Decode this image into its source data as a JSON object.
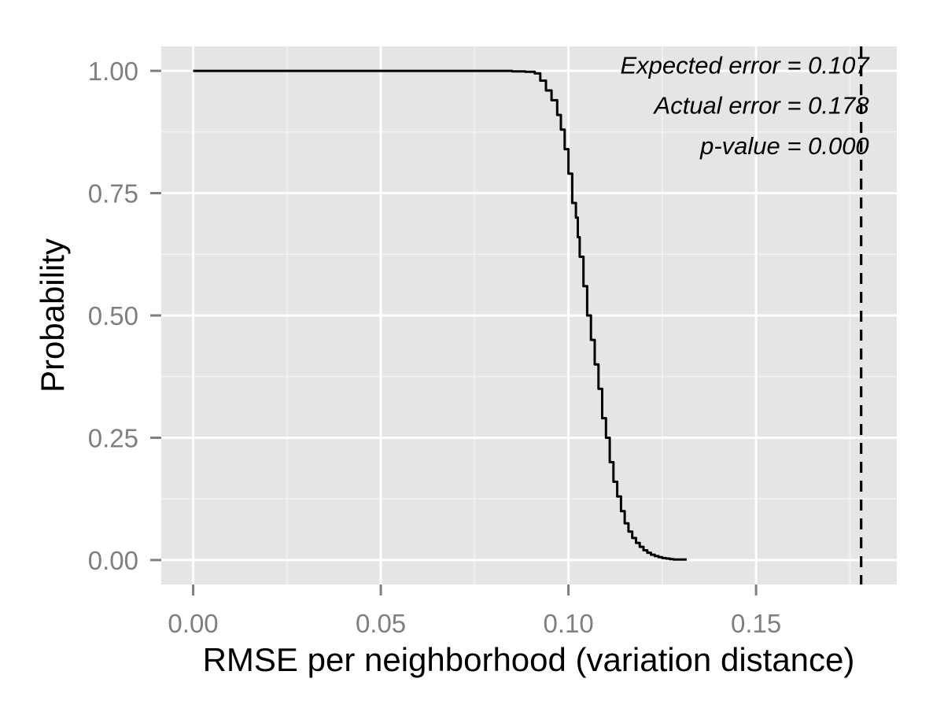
{
  "chart_data": {
    "type": "line",
    "title": "",
    "xlabel": "RMSE per neighborhood (variation distance)",
    "ylabel": "Probability",
    "xlim": [
      -0.0085,
      0.1875
    ],
    "ylim": [
      -0.05,
      1.05
    ],
    "x_ticks": [
      0.0,
      0.05,
      0.1,
      0.15
    ],
    "x_tick_labels": [
      "0.00",
      "0.05",
      "0.10",
      "0.15"
    ],
    "y_ticks": [
      0.0,
      0.25,
      0.5,
      0.75,
      1.0
    ],
    "y_tick_labels": [
      "0.00",
      "0.25",
      "0.50",
      "0.75",
      "1.00"
    ],
    "grid": true,
    "background": "#e5e5e5",
    "grid_color": "#ffffff",
    "line_color": "#000000",
    "tick_label_color": "#7f7f7f",
    "series": [
      {
        "style": "step",
        "x": [
          0.0,
          0.085,
          0.0885,
          0.091,
          0.0925,
          0.094,
          0.0955,
          0.097,
          0.098,
          0.099,
          0.1,
          0.101,
          0.102,
          0.1025,
          0.103,
          0.104,
          0.105,
          0.106,
          0.107,
          0.108,
          0.109,
          0.11,
          0.111,
          0.112,
          0.113,
          0.114,
          0.115,
          0.116,
          0.117,
          0.118,
          0.119,
          0.12,
          0.121,
          0.122,
          0.123,
          0.124,
          0.125,
          0.126,
          0.127,
          0.128,
          0.1315
        ],
        "y": [
          1.0,
          0.999,
          0.998,
          0.995,
          0.98,
          0.96,
          0.94,
          0.91,
          0.88,
          0.84,
          0.79,
          0.73,
          0.7,
          0.66,
          0.62,
          0.56,
          0.5,
          0.45,
          0.4,
          0.35,
          0.29,
          0.25,
          0.2,
          0.16,
          0.13,
          0.1,
          0.075,
          0.058,
          0.045,
          0.035,
          0.027,
          0.02,
          0.015,
          0.011,
          0.008,
          0.006,
          0.004,
          0.003,
          0.002,
          0.001,
          0.001
        ]
      }
    ],
    "vline": {
      "x": 0.178,
      "style": "dashed"
    },
    "annotations": [
      {
        "text": "Expected error = 0.107",
        "x": 0.178,
        "y": 1.0125,
        "anchor": "end"
      },
      {
        "text": "Actual error = 0.178",
        "x": 0.178,
        "y": 0.93,
        "anchor": "end"
      },
      {
        "text": "p-value = 0.000",
        "x": 0.178,
        "y": 0.847,
        "anchor": "end"
      }
    ]
  }
}
